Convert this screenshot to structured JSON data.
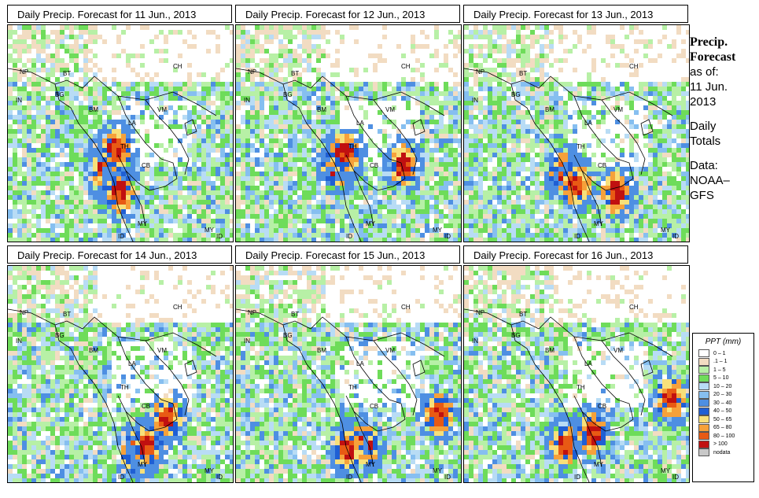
{
  "panels": [
    {
      "title": "Daily Precip. Forecast for  11 Jun., 2013"
    },
    {
      "title": "Daily Precip. Forecast for  12 Jun., 2013"
    },
    {
      "title": "Daily Precip. Forecast for  13 Jun., 2013"
    },
    {
      "title": "Daily Precip. Forecast for  14 Jun., 2013"
    },
    {
      "title": "Daily Precip. Forecast for  15 Jun., 2013"
    },
    {
      "title": "Daily Precip. Forecast for  16 Jun., 2013"
    }
  ],
  "map_labels": {
    "CH": "CH",
    "NP": "NP",
    "BT": "BT",
    "IN": "IN",
    "BG": "BG",
    "BM": "BM",
    "VM": "VM",
    "LA": "LA",
    "TH": "TH",
    "CB": "CB",
    "MY": "MY",
    "ID": "ID"
  },
  "sidebar": {
    "heading1": "Precip.",
    "heading2": "Forecast",
    "asof": "as of:",
    "date1": "11 Jun.",
    "date2": "2013",
    "totals1": "Daily",
    "totals2": "Totals",
    "data1": "Data:",
    "data2": "NOAA–",
    "data3": "GFS"
  },
  "legend": {
    "title": "PPT (mm)",
    "items": [
      {
        "label": "0 – 1",
        "color": "#ffffff"
      },
      {
        "label": ".1 – 1",
        "color": "#f2dcc2"
      },
      {
        "label": "1 – 5",
        "color": "#b7f0a6"
      },
      {
        "label": "5 – 10",
        "color": "#6edc5a"
      },
      {
        "label": "10 – 20",
        "color": "#b8dcf5"
      },
      {
        "label": "20 – 30",
        "color": "#86bff0"
      },
      {
        "label": "30 – 40",
        "color": "#4e8fe2"
      },
      {
        "label": "40 – 50",
        "color": "#1f5fd4"
      },
      {
        "label": "50 – 65",
        "color": "#f7e07a"
      },
      {
        "label": "65 – 80",
        "color": "#f6a13a"
      },
      {
        "label": "80 – 100",
        "color": "#e85a14"
      },
      {
        "label": "> 100",
        "color": "#c01010"
      },
      {
        "label": "nodata",
        "color": "#c8c8c8"
      }
    ]
  }
}
